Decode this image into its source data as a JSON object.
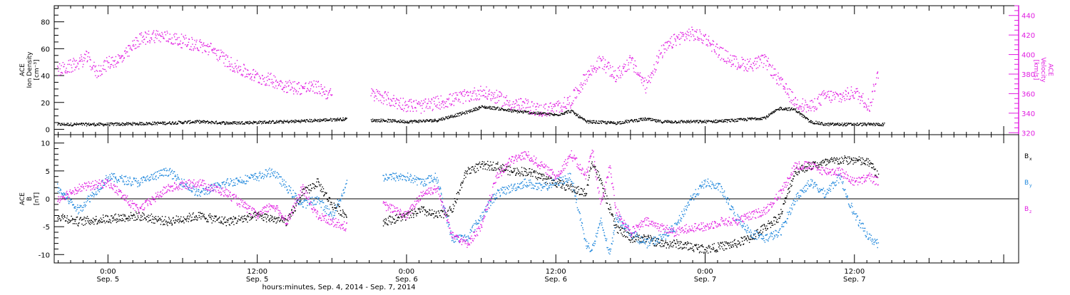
{
  "colors": {
    "black": "#000000",
    "magenta": "#e11de1",
    "blue": "#1e87dc"
  },
  "xaxis": {
    "ticks": [
      {
        "t": 1.0,
        "time": "0:00",
        "date": "Sep. 5"
      },
      {
        "t": 1.5,
        "time": "12:00",
        "date": "Sep. 5"
      },
      {
        "t": 2.0,
        "time": "0:00",
        "date": "Sep. 6"
      },
      {
        "t": 2.5,
        "time": "12:00",
        "date": "Sep. 6"
      },
      {
        "t": 3.0,
        "time": "0:00",
        "date": "Sep. 7"
      },
      {
        "t": 3.5,
        "time": "12:00",
        "date": "Sep. 7"
      }
    ],
    "title": "hours:minutes, Sep.  4, 2014 - Sep.  7, 2014"
  },
  "panel1": {
    "left_label": [
      "ACE",
      "Ion Density",
      "[cm⁻³]"
    ],
    "right_label": [
      "ACE",
      "Velocity",
      "[km/s]"
    ],
    "left_ticks": [
      "0",
      "20",
      "40",
      "60",
      "80"
    ],
    "right_ticks": [
      "320",
      "340",
      "360",
      "380",
      "400",
      "420",
      "440"
    ]
  },
  "panel2": {
    "left_label": [
      "ACE",
      "B",
      "[nT]"
    ],
    "left_ticks": [
      "-10",
      "-5",
      "0",
      "5",
      "10"
    ],
    "legend": [
      {
        "label": "B",
        "sub": "x",
        "color": "#000000"
      },
      {
        "label": "B",
        "sub": "y",
        "color": "#1e87dc"
      },
      {
        "label": "B",
        "sub": "z",
        "color": "#e11de1"
      }
    ]
  },
  "chart_data": [
    {
      "type": "scatter",
      "title": "",
      "xlabel": "hours:minutes, Sep.  4, 2014 - Sep.  7, 2014",
      "x_unit": "days since Sep. 4, 2014 00:00",
      "xlim": [
        0.82,
        4.05
      ],
      "ylabel": "ACE Ion Density [cm^-3]",
      "ylim": [
        -4,
        92
      ],
      "y2label": "ACE Velocity [km/s]",
      "y2lim": [
        318,
        450
      ],
      "series": [
        {
          "name": "Ion Density",
          "axis": "left",
          "color": "#000000",
          "x": [
            0.83,
            0.9,
            1.0,
            1.1,
            1.2,
            1.3,
            1.4,
            1.5,
            1.6,
            1.7,
            1.8,
            1.85,
            1.88,
            1.92,
            2.0,
            2.1,
            2.2,
            2.25,
            2.3,
            2.35,
            2.4,
            2.45,
            2.5,
            2.55,
            2.6,
            2.7,
            2.8,
            2.85,
            2.9,
            3.0,
            3.1,
            3.2,
            3.25,
            3.3,
            3.35,
            3.4,
            3.45,
            3.5,
            3.55,
            3.6
          ],
          "y": [
            4,
            4,
            4,
            4.5,
            5,
            6,
            5,
            5.5,
            6,
            7,
            8,
            null,
            7,
            7,
            6,
            7,
            13,
            17,
            16,
            14,
            13,
            12,
            11,
            14,
            6,
            5,
            8,
            6,
            6,
            6,
            7,
            9,
            16,
            15,
            6,
            4,
            4,
            4,
            4,
            4
          ]
        },
        {
          "name": "Velocity",
          "axis": "right",
          "color": "#e11de1",
          "x": [
            0.83,
            0.87,
            0.9,
            0.93,
            0.96,
            1.0,
            1.05,
            1.1,
            1.15,
            1.2,
            1.25,
            1.3,
            1.35,
            1.4,
            1.45,
            1.5,
            1.55,
            1.6,
            1.65,
            1.7,
            1.75,
            1.8,
            1.85,
            1.88,
            1.92,
            1.96,
            2.0,
            2.05,
            2.1,
            2.15,
            2.2,
            2.25,
            2.3,
            2.35,
            2.4,
            2.45,
            2.5,
            2.55,
            2.6,
            2.65,
            2.7,
            2.75,
            2.8,
            2.85,
            2.9,
            2.95,
            3.0,
            3.05,
            3.1,
            3.15,
            3.2,
            3.25,
            3.3,
            3.35,
            3.4,
            3.45,
            3.5,
            3.55,
            3.58
          ],
          "y": [
            384,
            388,
            392,
            398,
            382,
            392,
            397,
            415,
            420,
            418,
            414,
            410,
            405,
            393,
            384,
            377,
            374,
            368,
            366,
            367,
            358,
            null,
            null,
            360,
            357,
            352,
            349,
            347,
            351,
            354,
            358,
            362,
            357,
            350,
            348,
            343,
            346,
            353,
            378,
            394,
            378,
            394,
            368,
            402,
            416,
            422,
            417,
            402,
            392,
            390,
            394,
            372,
            352,
            346,
            358,
            357,
            362,
            348,
            384
          ]
        }
      ]
    },
    {
      "type": "scatter",
      "title": "",
      "xlabel": "hours:minutes, Sep.  4, 2014 - Sep.  7, 2014",
      "x_unit": "days since Sep. 4, 2014 00:00",
      "xlim": [
        0.82,
        4.05
      ],
      "ylabel": "ACE B [nT]",
      "ylim": [
        -11.5,
        11.5
      ],
      "series": [
        {
          "name": "Bx",
          "color": "#000000",
          "x": [
            0.83,
            0.9,
            1.0,
            1.1,
            1.2,
            1.3,
            1.4,
            1.5,
            1.6,
            1.65,
            1.7,
            1.75,
            1.8,
            1.85,
            1.88,
            1.92,
            2.0,
            2.05,
            2.1,
            2.15,
            2.2,
            2.25,
            2.3,
            2.35,
            2.4,
            2.45,
            2.5,
            2.55,
            2.6,
            2.62,
            2.65,
            2.68,
            2.7,
            2.75,
            2.8,
            2.85,
            2.9,
            2.95,
            3.0,
            3.05,
            3.1,
            3.15,
            3.2,
            3.25,
            3.3,
            3.35,
            3.4,
            3.45,
            3.5,
            3.55,
            3.58
          ],
          "y": [
            -3,
            -4,
            -3.5,
            -3,
            -4,
            -3,
            -4,
            -3,
            -4,
            1,
            3,
            -1,
            -3,
            null,
            null,
            -4,
            -3,
            -2,
            -3,
            -2,
            5,
            6,
            6,
            5,
            5,
            4,
            3,
            2,
            1,
            7,
            3,
            -2,
            -5,
            -7,
            -7,
            -8,
            -8,
            -8.5,
            -9,
            -8.5,
            -8,
            -7,
            -5,
            -3,
            5,
            6,
            6.5,
            7,
            7,
            6.5,
            4
          ]
        },
        {
          "name": "By",
          "color": "#1e87dc",
          "x": [
            0.83,
            0.9,
            1.0,
            1.1,
            1.2,
            1.3,
            1.4,
            1.5,
            1.55,
            1.6,
            1.65,
            1.7,
            1.75,
            1.8,
            1.85,
            1.88,
            1.92,
            2.0,
            2.05,
            2.1,
            2.15,
            2.2,
            2.25,
            2.3,
            2.35,
            2.4,
            2.45,
            2.5,
            2.55,
            2.6,
            2.62,
            2.65,
            2.68,
            2.7,
            2.75,
            2.8,
            2.85,
            2.9,
            2.95,
            3.0,
            3.05,
            3.1,
            3.15,
            3.2,
            3.25,
            3.3,
            3.35,
            3.4,
            3.45,
            3.5,
            3.55,
            3.58
          ],
          "y": [
            2,
            -2,
            4,
            3,
            5,
            1,
            3,
            4,
            5,
            2,
            -1,
            0,
            -3,
            3,
            null,
            null,
            4,
            4,
            3,
            4,
            -7,
            -7,
            -3,
            1,
            2,
            3,
            2,
            3,
            4,
            -8,
            -9,
            -4,
            -10,
            -3,
            -6,
            -8,
            -7,
            -5,
            0,
            3,
            2,
            -3,
            -6,
            -7,
            -6,
            0,
            3,
            1,
            4,
            -3,
            -7,
            -8
          ]
        },
        {
          "name": "Bz",
          "color": "#e11de1",
          "x": [
            0.83,
            0.9,
            1.0,
            1.1,
            1.2,
            1.3,
            1.4,
            1.5,
            1.55,
            1.6,
            1.65,
            1.7,
            1.75,
            1.8,
            1.85,
            1.88,
            1.92,
            2.0,
            2.05,
            2.1,
            2.15,
            2.2,
            2.25,
            2.3,
            2.35,
            2.4,
            2.45,
            2.5,
            2.55,
            2.6,
            2.62,
            2.65,
            2.68,
            2.7,
            2.75,
            2.8,
            2.85,
            2.9,
            2.95,
            3.0,
            3.05,
            3.1,
            3.15,
            3.2,
            3.25,
            3.3,
            3.35,
            3.4,
            3.45,
            3.5,
            3.55,
            3.58
          ],
          "y": [
            0,
            2,
            3,
            -2,
            2,
            3,
            1,
            -3,
            -1,
            -4,
            2,
            -3,
            -4,
            -5,
            null,
            null,
            -1,
            -3,
            1,
            2,
            -6,
            -8,
            -5,
            4,
            7,
            8,
            6,
            4,
            8,
            4,
            9,
            -1,
            6,
            -2,
            -6,
            -4,
            -5,
            -6,
            -5,
            -5,
            -4,
            -4,
            -3,
            -2,
            1,
            6,
            6,
            5,
            5,
            3,
            4,
            3
          ]
        }
      ]
    }
  ]
}
